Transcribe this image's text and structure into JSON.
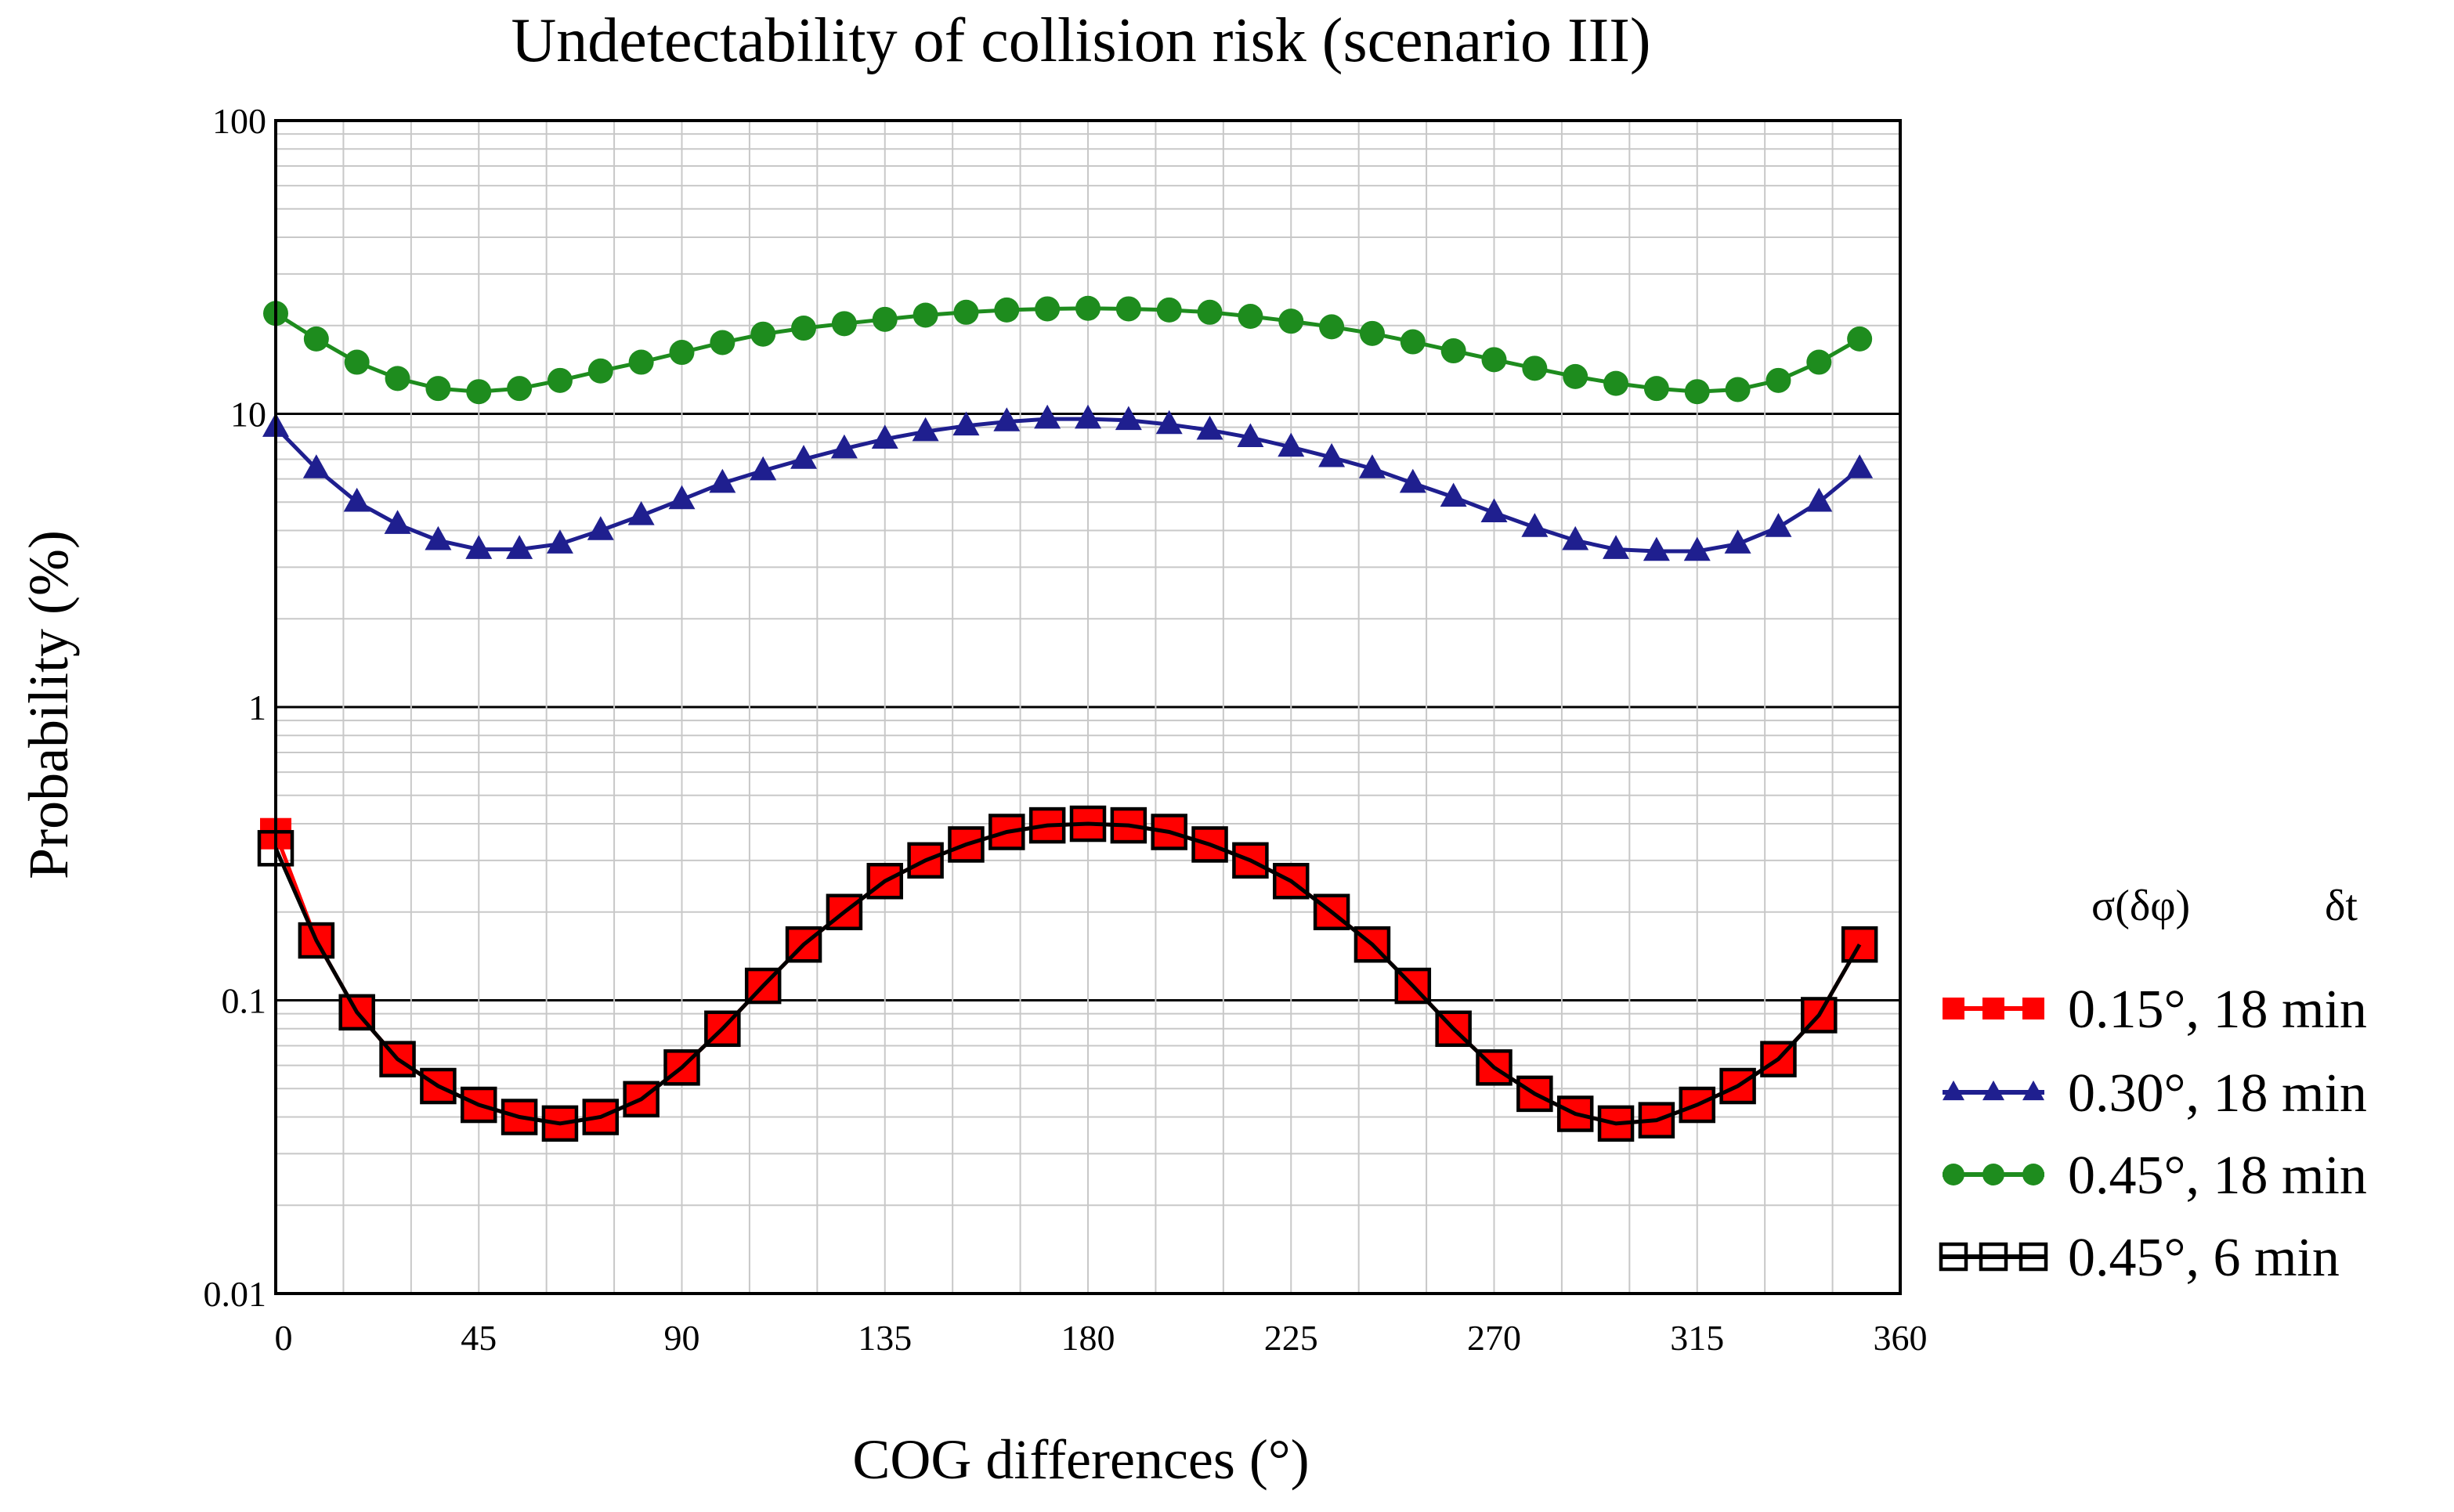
{
  "chart_data": {
    "type": "line",
    "title": "Undetectability of collision risk (scenario III)",
    "xlabel": "COG differences (°)",
    "ylabel": "Probability (%)",
    "xlim": [
      0,
      360
    ],
    "ylim": [
      0.01,
      100
    ],
    "yscale": "log",
    "grid": true,
    "x_ticks": [
      "0",
      "45",
      "90",
      "135",
      "180",
      "225",
      "270",
      "315",
      "360"
    ],
    "y_ticks": [
      "0.01",
      "0.1",
      "1",
      "10",
      "100"
    ],
    "legend_position": "right",
    "legend_header": {
      "sigma": "σ(δφ)",
      "dt": "δt"
    },
    "x": [
      0,
      9,
      18,
      27,
      36,
      45,
      54,
      63,
      72,
      81,
      90,
      99,
      108,
      117,
      126,
      135,
      144,
      153,
      162,
      171,
      180,
      189,
      198,
      207,
      216,
      225,
      234,
      243,
      252,
      261,
      270,
      279,
      288,
      297,
      306,
      315,
      324,
      333,
      342,
      351
    ],
    "series": [
      {
        "name": "0.15°, 18 min",
        "color": "#ff0000",
        "marker": "filled-square",
        "values": [
          0.37,
          0.16,
          0.091,
          0.063,
          0.051,
          0.044,
          0.04,
          0.038,
          0.04,
          0.046,
          0.059,
          0.08,
          0.112,
          0.155,
          0.2,
          0.255,
          0.3,
          0.34,
          0.375,
          0.395,
          0.4,
          0.395,
          0.375,
          0.34,
          0.3,
          0.255,
          0.2,
          0.155,
          0.112,
          0.08,
          0.059,
          0.048,
          0.041,
          0.038,
          0.039,
          0.044,
          0.051,
          0.063,
          0.089,
          0.155
        ]
      },
      {
        "name": "0.30°, 18 min",
        "color": "#1f1f8f",
        "marker": "filled-triangle",
        "values": [
          9.0,
          6.5,
          5.0,
          4.2,
          3.7,
          3.45,
          3.45,
          3.6,
          4.0,
          4.5,
          5.1,
          5.8,
          6.4,
          7.0,
          7.6,
          8.2,
          8.7,
          9.1,
          9.4,
          9.6,
          9.6,
          9.5,
          9.2,
          8.8,
          8.3,
          7.7,
          7.1,
          6.5,
          5.8,
          5.2,
          4.6,
          4.1,
          3.7,
          3.45,
          3.4,
          3.4,
          3.6,
          4.1,
          5.0,
          6.5
        ]
      },
      {
        "name": "0.45°, 18 min",
        "color": "#1e8c1e",
        "marker": "filled-circle",
        "values": [
          22.0,
          18.0,
          15.0,
          13.2,
          12.2,
          11.9,
          12.2,
          13.0,
          14.0,
          15.0,
          16.2,
          17.5,
          18.7,
          19.6,
          20.3,
          21.0,
          21.7,
          22.2,
          22.6,
          22.8,
          22.9,
          22.8,
          22.6,
          22.2,
          21.5,
          20.7,
          19.8,
          18.8,
          17.6,
          16.4,
          15.3,
          14.3,
          13.4,
          12.7,
          12.2,
          11.9,
          12.1,
          13.0,
          15.0,
          18.0
        ]
      },
      {
        "name": "0.45°,  6 min",
        "color": "#000000",
        "marker": "open-square",
        "values": [
          0.33,
          0.16,
          0.091,
          0.063,
          0.051,
          0.044,
          0.04,
          0.038,
          0.04,
          0.046,
          0.059,
          0.08,
          0.112,
          0.155,
          0.2,
          0.255,
          0.3,
          0.34,
          0.375,
          0.395,
          0.4,
          0.395,
          0.375,
          0.34,
          0.3,
          0.255,
          0.2,
          0.155,
          0.112,
          0.08,
          0.059,
          0.048,
          0.041,
          0.038,
          0.039,
          0.044,
          0.051,
          0.063,
          0.089,
          0.155
        ]
      }
    ]
  }
}
